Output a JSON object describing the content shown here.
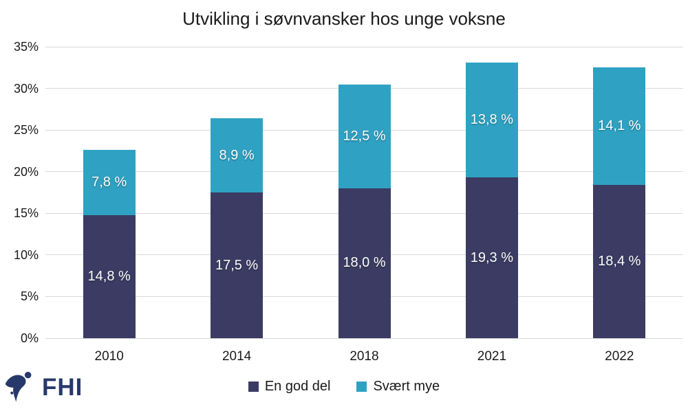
{
  "page": {
    "background": "#ffffff"
  },
  "chart_data": {
    "type": "bar",
    "stacked": true,
    "title": "Utvikling i søvnvansker hos unge voksne",
    "categories": [
      "2010",
      "2014",
      "2018",
      "2021",
      "2022"
    ],
    "series": [
      {
        "name": "En god del",
        "color": "#3b3b63",
        "values": [
          14.8,
          17.5,
          18.0,
          19.3,
          18.4
        ],
        "data_labels": [
          "14,8 %",
          "17,5 %",
          "18,0 %",
          "19,3 %",
          "18,4 %"
        ]
      },
      {
        "name": "Svært mye",
        "color": "#2fa2c3",
        "values": [
          7.8,
          8.9,
          12.5,
          13.8,
          14.1
        ],
        "data_labels": [
          "7,8 %",
          "8,9 %",
          "12,5 %",
          "13,8 %",
          "14,1 %"
        ]
      }
    ],
    "y_axis": {
      "min": 0,
      "max": 35,
      "step": 5,
      "tick_labels": [
        "0%",
        "5%",
        "10%",
        "15%",
        "20%",
        "25%",
        "30%",
        "35%"
      ]
    },
    "xlabel": "",
    "ylabel": "",
    "grid": true,
    "gridline_color": "#d9d9d9",
    "data_label_color": "#ffffff",
    "legend_position": "bottom"
  },
  "logo": {
    "text": "FHI",
    "color": "#27386b"
  }
}
